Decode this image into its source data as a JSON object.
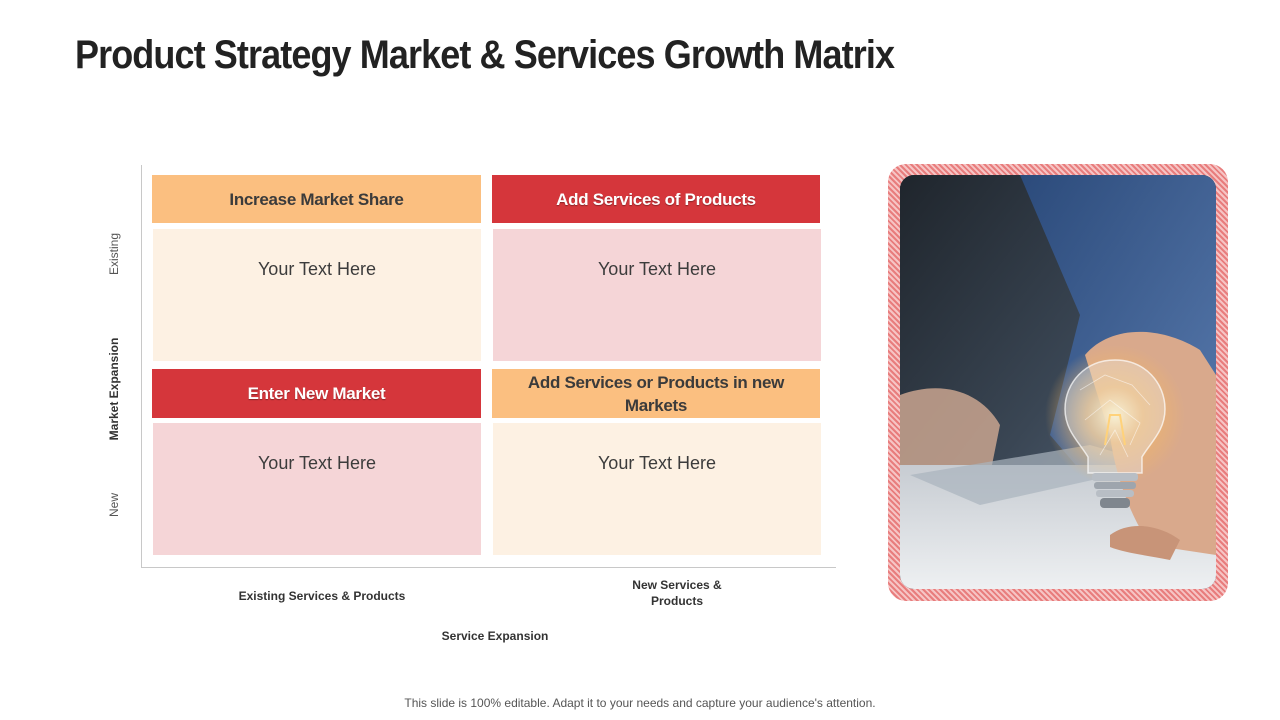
{
  "slide": {
    "title": "Product Strategy Market & Services Growth Matrix",
    "footer": "This slide is 100% editable. Adapt it to your needs and capture your audience's attention."
  },
  "axes": {
    "y_title": "Market Expansion",
    "y_top": "Existing",
    "y_bottom": "New",
    "x_title": "Service Expansion",
    "x_left": "Existing Services & Products",
    "x_right": "New Services & Products"
  },
  "quadrants": [
    {
      "heading": "Increase Market Share",
      "text": "Your Text Here"
    },
    {
      "heading": "Add Services of Products",
      "text": "Your Text Here"
    },
    {
      "heading": "Enter New Market",
      "text": "Your Text Here"
    },
    {
      "heading": "Add Services or Products in new Markets",
      "text": "Your Text Here"
    }
  ],
  "colors": {
    "orange_header": "#fbbf80",
    "red_header": "#d5363b",
    "cream_body": "#fdf1e3",
    "pink_body": "#f5d5d7",
    "frame_accent": "#e87d7d"
  },
  "image": {
    "icon": "lightbulb-hand-photo"
  }
}
